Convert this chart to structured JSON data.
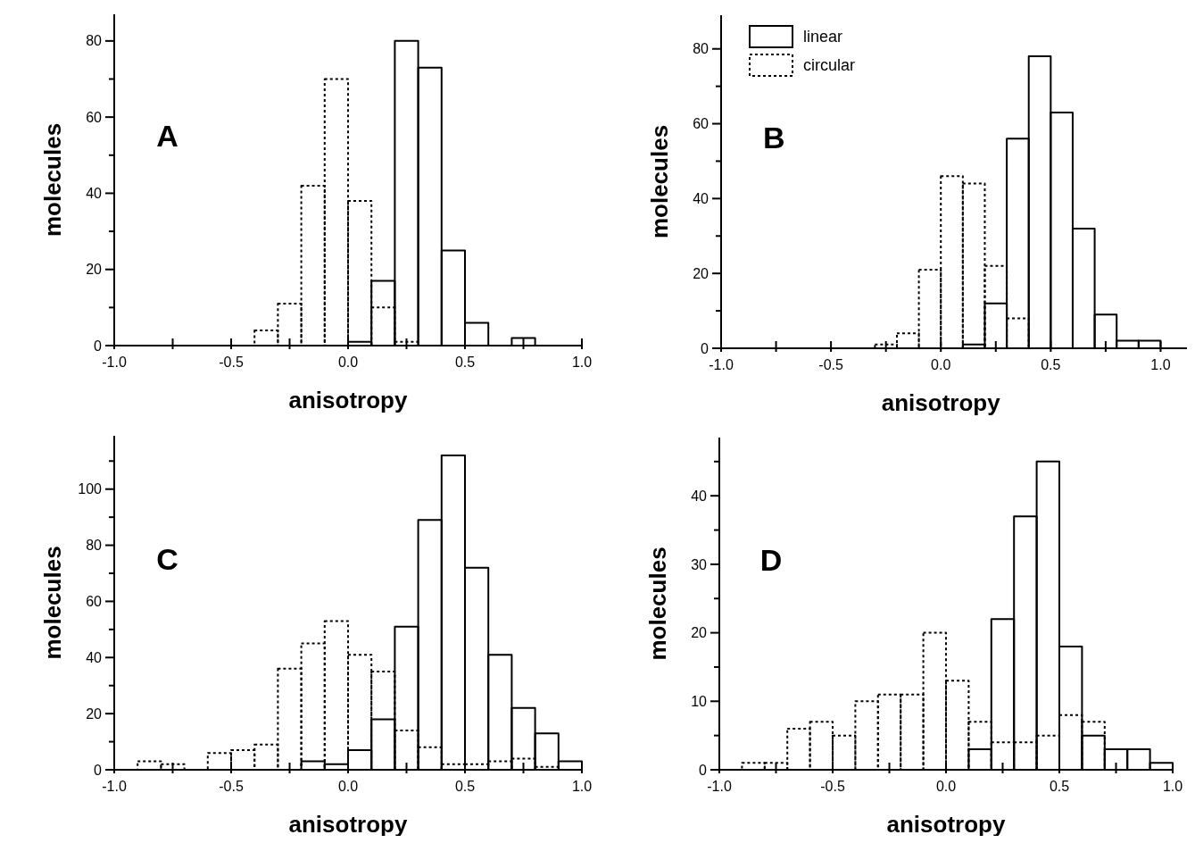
{
  "chart_data": [
    {
      "type": "histogram",
      "xlabel": "anisotropy",
      "ylabel": "molecules",
      "annotations": [
        "A"
      ],
      "bins": [
        -1.0,
        -0.9,
        -0.8,
        -0.7,
        -0.6,
        -0.5,
        -0.4,
        -0.3,
        -0.2,
        -0.1,
        0.0,
        0.1,
        0.2,
        0.3,
        0.4,
        0.5,
        0.6,
        0.7,
        0.8,
        0.9,
        1.0
      ],
      "xlim": [
        -1.0,
        1.0
      ],
      "xticks": [
        {
          "value": -1,
          "label": "-1.0"
        },
        {
          "value": -0.75,
          "label": null
        },
        {
          "value": -0.5,
          "label": "-0.5"
        },
        {
          "value": -0.25,
          "label": null
        },
        {
          "value": 0,
          "label": "0.0"
        },
        {
          "value": 0.25,
          "label": null
        },
        {
          "value": 0.5,
          "label": "0.5"
        },
        {
          "value": 0.75,
          "label": null
        },
        {
          "value": 1,
          "label": "1.0"
        }
      ],
      "ylim": [
        0,
        87
      ],
      "yticks": [
        0,
        {
          "value": 10,
          "label": null
        },
        20,
        {
          "value": 30,
          "label": null
        },
        40,
        {
          "value": 50,
          "label": null
        },
        60,
        {
          "value": 70,
          "label": null
        },
        80
      ],
      "legend": false,
      "grid": false,
      "series": [
        {
          "color": "#000000",
          "line_style": "dotted",
          "values": [
            0,
            0,
            0,
            0,
            0,
            0,
            4,
            11,
            42,
            70,
            38,
            10,
            1,
            0,
            0,
            0,
            0,
            0,
            0,
            0
          ]
        },
        {
          "color": "#000000",
          "line_style": "solid",
          "values": [
            0,
            0,
            0,
            0,
            0,
            0,
            0,
            0,
            0,
            0,
            1,
            17,
            80,
            73,
            25,
            6,
            0,
            2,
            0,
            0
          ]
        }
      ]
    },
    {
      "type": "histogram",
      "xlabel": "anisotropy",
      "ylabel": "molecules",
      "annotations": [
        "B"
      ],
      "bins": [
        -1.0,
        -0.9,
        -0.8,
        -0.7,
        -0.6,
        -0.5,
        -0.4,
        -0.3,
        -0.2,
        -0.1,
        0.0,
        0.1,
        0.2,
        0.3,
        0.4,
        0.5,
        0.6,
        0.7,
        0.8,
        0.9,
        1.0
      ],
      "xlim": [
        -1.0,
        1.12
      ],
      "xticks": [
        {
          "value": -1,
          "label": "-1.0"
        },
        {
          "value": -0.75,
          "label": null
        },
        {
          "value": -0.5,
          "label": "-0.5"
        },
        {
          "value": -0.25,
          "label": null
        },
        {
          "value": 0,
          "label": "0.0"
        },
        {
          "value": 0.25,
          "label": null
        },
        {
          "value": 0.5,
          "label": "0.5"
        },
        {
          "value": 0.75,
          "label": null
        },
        {
          "value": 1,
          "label": "1.0"
        }
      ],
      "ylim": [
        0,
        89
      ],
      "yticks": [
        0,
        {
          "value": 10,
          "label": null
        },
        20,
        {
          "value": 30,
          "label": null
        },
        40,
        {
          "value": 50,
          "label": null
        },
        60,
        {
          "value": 70,
          "label": null
        },
        80
      ],
      "legend": "top left",
      "grid": false,
      "series": [
        {
          "name": "linear",
          "color": "#000000",
          "line_style": "solid",
          "values": [
            0,
            0,
            0,
            0,
            0,
            0,
            0,
            0,
            0,
            0,
            0,
            1,
            12,
            56,
            78,
            63,
            32,
            9,
            2,
            2
          ]
        },
        {
          "name": "circular",
          "color": "#000000",
          "line_style": "dotted",
          "values": [
            0,
            0,
            0,
            0,
            0,
            0,
            0,
            1,
            4,
            21,
            46,
            44,
            22,
            8,
            0,
            0,
            0,
            0,
            0,
            0
          ]
        }
      ]
    },
    {
      "type": "histogram",
      "xlabel": "anisotropy",
      "ylabel": "molecules",
      "annotations": [
        "C"
      ],
      "bins": [
        -1.0,
        -0.9,
        -0.8,
        -0.7,
        -0.6,
        -0.5,
        -0.4,
        -0.3,
        -0.2,
        -0.1,
        0.0,
        0.1,
        0.2,
        0.3,
        0.4,
        0.5,
        0.6,
        0.7,
        0.8,
        0.9,
        1.0
      ],
      "xlim": [
        -1.0,
        1.0
      ],
      "xticks": [
        {
          "value": -1,
          "label": "-1.0"
        },
        {
          "value": -0.75,
          "label": null
        },
        {
          "value": -0.5,
          "label": "-0.5"
        },
        {
          "value": -0.25,
          "label": null
        },
        {
          "value": 0,
          "label": "0.0"
        },
        {
          "value": 0.25,
          "label": null
        },
        {
          "value": 0.5,
          "label": "0.5"
        },
        {
          "value": 0.75,
          "label": null
        },
        {
          "value": 1,
          "label": "1.0"
        }
      ],
      "ylim": [
        0,
        119
      ],
      "yticks": [
        0,
        {
          "value": 10,
          "label": null
        },
        20,
        {
          "value": 30,
          "label": null
        },
        40,
        {
          "value": 50,
          "label": null
        },
        60,
        {
          "value": 70,
          "label": null
        },
        80,
        {
          "value": 90,
          "label": null
        },
        100,
        {
          "value": 110,
          "label": null
        }
      ],
      "legend": false,
      "grid": false,
      "series": [
        {
          "color": "#000000",
          "line_style": "dotted",
          "values": [
            0,
            3,
            2,
            0,
            6,
            7,
            9,
            36,
            45,
            53,
            41,
            35,
            14,
            8,
            2,
            2,
            3,
            4,
            1,
            0
          ]
        },
        {
          "color": "#000000",
          "line_style": "solid",
          "values": [
            0,
            0,
            0,
            0,
            0,
            0,
            0,
            0,
            3,
            2,
            7,
            18,
            51,
            89,
            112,
            72,
            41,
            22,
            13,
            3
          ]
        }
      ]
    },
    {
      "type": "histogram",
      "xlabel": "anisotropy",
      "ylabel": "molecules",
      "annotations": [
        "D"
      ],
      "bins": [
        -1.0,
        -0.9,
        -0.8,
        -0.7,
        -0.6,
        -0.5,
        -0.4,
        -0.3,
        -0.2,
        -0.1,
        0.0,
        0.1,
        0.2,
        0.3,
        0.4,
        0.5,
        0.6,
        0.7,
        0.8,
        0.9,
        1.0
      ],
      "xlim": [
        -1.0,
        1.0
      ],
      "xticks": [
        {
          "value": -1,
          "label": "-1.0"
        },
        {
          "value": -0.75,
          "label": null
        },
        {
          "value": -0.5,
          "label": "-0.5"
        },
        {
          "value": -0.25,
          "label": null
        },
        {
          "value": 0,
          "label": "0.0"
        },
        {
          "value": 0.25,
          "label": null
        },
        {
          "value": 0.5,
          "label": "0.5"
        },
        {
          "value": 0.75,
          "label": null
        },
        {
          "value": 1,
          "label": "1.0"
        }
      ],
      "ylim": [
        0,
        48.5
      ],
      "yticks": [
        0,
        {
          "value": 5,
          "label": null
        },
        10,
        {
          "value": 15,
          "label": null
        },
        20,
        {
          "value": 25,
          "label": null
        },
        30,
        {
          "value": 35,
          "label": null
        },
        40,
        {
          "value": 45,
          "label": null
        }
      ],
      "legend": false,
      "grid": false,
      "series": [
        {
          "color": "#000000",
          "line_style": "dotted",
          "values": [
            0,
            1,
            1,
            6,
            7,
            5,
            10,
            11,
            11,
            20,
            13,
            7,
            4,
            4,
            5,
            8,
            7,
            0,
            0,
            0
          ]
        },
        {
          "color": "#000000",
          "line_style": "solid",
          "values": [
            0,
            0,
            0,
            0,
            0,
            0,
            0,
            0,
            0,
            0,
            0,
            3,
            22,
            37,
            45,
            18,
            5,
            3,
            3,
            1
          ]
        }
      ]
    }
  ]
}
